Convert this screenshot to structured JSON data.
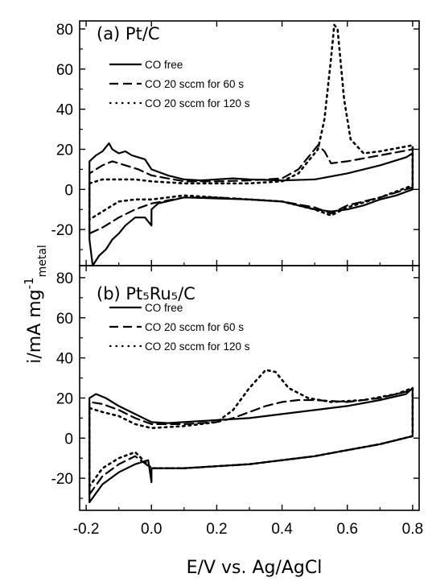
{
  "chart_data": {
    "type": "line",
    "xlabel": "E/V vs. Ag/AgCl",
    "ylabel": "i/mA mg",
    "ylabel_sup": "-1",
    "ylabel_sub": "metal",
    "xlim": [
      -0.22,
      0.82
    ],
    "xticks": [
      "-0.2",
      "0.0",
      "0.2",
      "0.4",
      "0.6",
      "0.8"
    ],
    "panels": [
      {
        "title": "(a)  Pt/C",
        "ylim": [
          -38,
          84
        ],
        "yticks": [
          "80",
          "60",
          "40",
          "20",
          "0",
          "-20"
        ],
        "legend": [
          "CO free",
          "CO 20 sccm for 60 s",
          "CO 20 sccm for 120 s"
        ],
        "series": [
          {
            "name": "CO free",
            "style": "solid",
            "upper": [
              [
                -0.19,
                -25
              ],
              [
                -0.19,
                14
              ],
              [
                -0.17,
                17
              ],
              [
                -0.15,
                19
              ],
              [
                -0.13,
                23
              ],
              [
                -0.12,
                20
              ],
              [
                -0.1,
                18
              ],
              [
                -0.08,
                19
              ],
              [
                -0.06,
                17
              ],
              [
                -0.04,
                16
              ],
              [
                -0.02,
                15
              ],
              [
                0.0,
                10
              ],
              [
                0.05,
                7
              ],
              [
                0.1,
                5
              ],
              [
                0.15,
                4.5
              ],
              [
                0.2,
                5
              ],
              [
                0.25,
                5.5
              ],
              [
                0.3,
                5
              ],
              [
                0.4,
                4.5
              ],
              [
                0.5,
                5
              ],
              [
                0.6,
                8
              ],
              [
                0.7,
                12
              ],
              [
                0.78,
                16
              ],
              [
                0.8,
                18
              ]
            ],
            "lower": [
              [
                0.8,
                18
              ],
              [
                0.8,
                0
              ],
              [
                0.75,
                -3
              ],
              [
                0.7,
                -5
              ],
              [
                0.65,
                -8
              ],
              [
                0.6,
                -10
              ],
              [
                0.55,
                -11
              ],
              [
                0.5,
                -10
              ],
              [
                0.45,
                -8
              ],
              [
                0.4,
                -6
              ],
              [
                0.3,
                -5
              ],
              [
                0.2,
                -4.5
              ],
              [
                0.1,
                -4
              ],
              [
                0.02,
                -7
              ],
              [
                0.0,
                -10
              ],
              [
                0.0,
                -18
              ],
              [
                -0.02,
                -14
              ],
              [
                -0.05,
                -14
              ],
              [
                -0.08,
                -18
              ],
              [
                -0.1,
                -22
              ],
              [
                -0.12,
                -25
              ],
              [
                -0.14,
                -30
              ],
              [
                -0.16,
                -33
              ],
              [
                -0.18,
                -38
              ],
              [
                -0.19,
                -25
              ]
            ]
          },
          {
            "name": "CO 20 sccm for 60 s",
            "style": "dashed",
            "upper": [
              [
                -0.19,
                -22
              ],
              [
                -0.19,
                8
              ],
              [
                -0.15,
                12
              ],
              [
                -0.12,
                14
              ],
              [
                -0.08,
                12
              ],
              [
                -0.04,
                10
              ],
              [
                0.0,
                7
              ],
              [
                0.1,
                4
              ],
              [
                0.2,
                4
              ],
              [
                0.3,
                4.5
              ],
              [
                0.4,
                5.5
              ],
              [
                0.45,
                10
              ],
              [
                0.48,
                16
              ],
              [
                0.51,
                22
              ],
              [
                0.53,
                19
              ],
              [
                0.55,
                13
              ],
              [
                0.6,
                14
              ],
              [
                0.7,
                17
              ],
              [
                0.8,
                20
              ]
            ],
            "lower": [
              [
                0.8,
                20
              ],
              [
                0.8,
                1
              ],
              [
                0.7,
                -4
              ],
              [
                0.6,
                -8
              ],
              [
                0.55,
                -12
              ],
              [
                0.5,
                -9
              ],
              [
                0.4,
                -6
              ],
              [
                0.3,
                -5
              ],
              [
                0.2,
                -4
              ],
              [
                0.1,
                -4
              ],
              [
                0.0,
                -7
              ],
              [
                -0.05,
                -10
              ],
              [
                -0.1,
                -14
              ],
              [
                -0.15,
                -19
              ],
              [
                -0.19,
                -22
              ]
            ]
          },
          {
            "name": "CO 20 sccm for 120 s",
            "style": "dotted",
            "upper": [
              [
                -0.19,
                -15
              ],
              [
                -0.19,
                3
              ],
              [
                -0.15,
                5
              ],
              [
                -0.1,
                5
              ],
              [
                -0.05,
                5
              ],
              [
                0.0,
                4
              ],
              [
                0.1,
                3
              ],
              [
                0.2,
                3
              ],
              [
                0.3,
                3
              ],
              [
                0.4,
                4
              ],
              [
                0.45,
                8
              ],
              [
                0.48,
                14
              ],
              [
                0.51,
                20
              ],
              [
                0.53,
                35
              ],
              [
                0.55,
                65
              ],
              [
                0.56,
                82
              ],
              [
                0.57,
                80
              ],
              [
                0.59,
                45
              ],
              [
                0.61,
                25
              ],
              [
                0.65,
                18
              ],
              [
                0.7,
                19
              ],
              [
                0.8,
                22
              ]
            ],
            "lower": [
              [
                0.8,
                22
              ],
              [
                0.8,
                2
              ],
              [
                0.7,
                -4
              ],
              [
                0.6,
                -9
              ],
              [
                0.55,
                -13
              ],
              [
                0.5,
                -10
              ],
              [
                0.4,
                -6
              ],
              [
                0.3,
                -5
              ],
              [
                0.2,
                -4
              ],
              [
                0.1,
                -3
              ],
              [
                0.0,
                -5
              ],
              [
                -0.05,
                -5
              ],
              [
                -0.1,
                -6
              ],
              [
                -0.19,
                -15
              ]
            ]
          }
        ]
      },
      {
        "title": "(b)  Pt₅Ru₅/C",
        "ylim": [
          -36,
          86
        ],
        "yticks": [
          "80",
          "60",
          "40",
          "20",
          "0",
          "-20"
        ],
        "legend": [
          "CO free",
          "CO 20 sccm for 60 s",
          "CO 20 sccm for 120 s"
        ],
        "series": [
          {
            "name": "CO free",
            "style": "solid",
            "upper": [
              [
                -0.19,
                -32
              ],
              [
                -0.19,
                20
              ],
              [
                -0.17,
                22
              ],
              [
                -0.14,
                20
              ],
              [
                -0.1,
                16
              ],
              [
                -0.05,
                12
              ],
              [
                0.0,
                8
              ],
              [
                0.05,
                7.5
              ],
              [
                0.1,
                8
              ],
              [
                0.2,
                9
              ],
              [
                0.3,
                10
              ],
              [
                0.4,
                12
              ],
              [
                0.5,
                14
              ],
              [
                0.6,
                16
              ],
              [
                0.7,
                19
              ],
              [
                0.78,
                22
              ],
              [
                0.8,
                25
              ]
            ],
            "lower": [
              [
                0.8,
                25
              ],
              [
                0.8,
                1
              ],
              [
                0.7,
                -3
              ],
              [
                0.6,
                -6
              ],
              [
                0.5,
                -9
              ],
              [
                0.4,
                -11
              ],
              [
                0.3,
                -13
              ],
              [
                0.2,
                -14
              ],
              [
                0.1,
                -15
              ],
              [
                0.0,
                -15
              ],
              [
                0.0,
                -22
              ],
              [
                -0.01,
                -11
              ],
              [
                -0.05,
                -13
              ],
              [
                -0.1,
                -17
              ],
              [
                -0.15,
                -23
              ],
              [
                -0.19,
                -32
              ]
            ]
          },
          {
            "name": "CO 20 sccm for 60 s",
            "style": "dashed",
            "upper": [
              [
                -0.19,
                -28
              ],
              [
                -0.19,
                18
              ],
              [
                -0.15,
                17
              ],
              [
                -0.1,
                14
              ],
              [
                -0.05,
                10
              ],
              [
                0.0,
                7
              ],
              [
                0.1,
                7
              ],
              [
                0.2,
                8
              ],
              [
                0.25,
                10
              ],
              [
                0.3,
                13
              ],
              [
                0.35,
                16
              ],
              [
                0.4,
                18
              ],
              [
                0.45,
                19
              ],
              [
                0.5,
                19
              ],
              [
                0.6,
                18
              ],
              [
                0.7,
                20
              ],
              [
                0.8,
                24
              ]
            ],
            "lower": [
              [
                0.8,
                24
              ],
              [
                0.8,
                1
              ],
              [
                0.7,
                -3
              ],
              [
                0.6,
                -6
              ],
              [
                0.5,
                -9
              ],
              [
                0.4,
                -11
              ],
              [
                0.3,
                -13
              ],
              [
                0.2,
                -14
              ],
              [
                0.1,
                -15
              ],
              [
                0.0,
                -15
              ],
              [
                -0.05,
                -9
              ],
              [
                -0.1,
                -13
              ],
              [
                -0.15,
                -19
              ],
              [
                -0.19,
                -28
              ]
            ]
          },
          {
            "name": "CO 20 sccm for 120 s",
            "style": "dotted",
            "upper": [
              [
                -0.19,
                -24
              ],
              [
                -0.19,
                15
              ],
              [
                -0.15,
                13
              ],
              [
                -0.1,
                11
              ],
              [
                -0.05,
                7
              ],
              [
                0.0,
                5
              ],
              [
                0.1,
                6
              ],
              [
                0.2,
                8
              ],
              [
                0.25,
                14
              ],
              [
                0.3,
                25
              ],
              [
                0.35,
                34
              ],
              [
                0.38,
                33
              ],
              [
                0.42,
                25
              ],
              [
                0.48,
                20
              ],
              [
                0.55,
                18
              ],
              [
                0.65,
                19
              ],
              [
                0.75,
                22
              ],
              [
                0.8,
                25
              ]
            ],
            "lower": [
              [
                0.8,
                25
              ],
              [
                0.8,
                1
              ],
              [
                0.7,
                -3
              ],
              [
                0.6,
                -6
              ],
              [
                0.5,
                -9
              ],
              [
                0.4,
                -11
              ],
              [
                0.3,
                -13
              ],
              [
                0.2,
                -14
              ],
              [
                0.1,
                -15
              ],
              [
                0.0,
                -15
              ],
              [
                -0.05,
                -7
              ],
              [
                -0.1,
                -10
              ],
              [
                -0.15,
                -15
              ],
              [
                -0.19,
                -24
              ]
            ]
          }
        ]
      }
    ]
  }
}
